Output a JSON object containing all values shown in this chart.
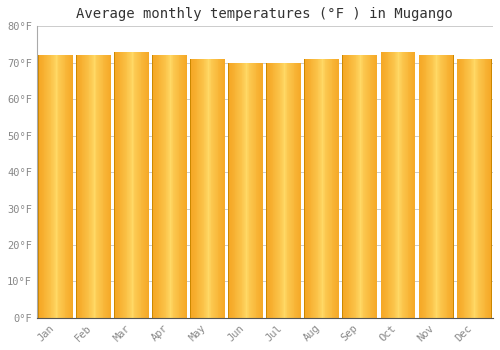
{
  "months": [
    "Jan",
    "Feb",
    "Mar",
    "Apr",
    "May",
    "Jun",
    "Jul",
    "Aug",
    "Sep",
    "Oct",
    "Nov",
    "Dec"
  ],
  "values": [
    72,
    72,
    73,
    72,
    71,
    70,
    70,
    71,
    72,
    73,
    72,
    71
  ],
  "bar_color_left": "#F5A623",
  "bar_color_center": "#FFD966",
  "bar_color_right": "#F5A623",
  "bar_bg_color": "#FDEBD0",
  "background_color": "#FFFFFF",
  "plot_bg_color": "#FFFFFF",
  "grid_color": "#CCCCCC",
  "title": "Average monthly temperatures (°F ) in Mugango",
  "title_fontsize": 10,
  "tick_label_color": "#888888",
  "ytick_labels": [
    "0°F",
    "10°F",
    "20°F",
    "30°F",
    "40°F",
    "50°F",
    "60°F",
    "70°F",
    "80°F"
  ],
  "ytick_values": [
    0,
    10,
    20,
    30,
    40,
    50,
    60,
    70,
    80
  ],
  "ylim": [
    0,
    80
  ],
  "font_family": "monospace",
  "bar_width": 0.92
}
